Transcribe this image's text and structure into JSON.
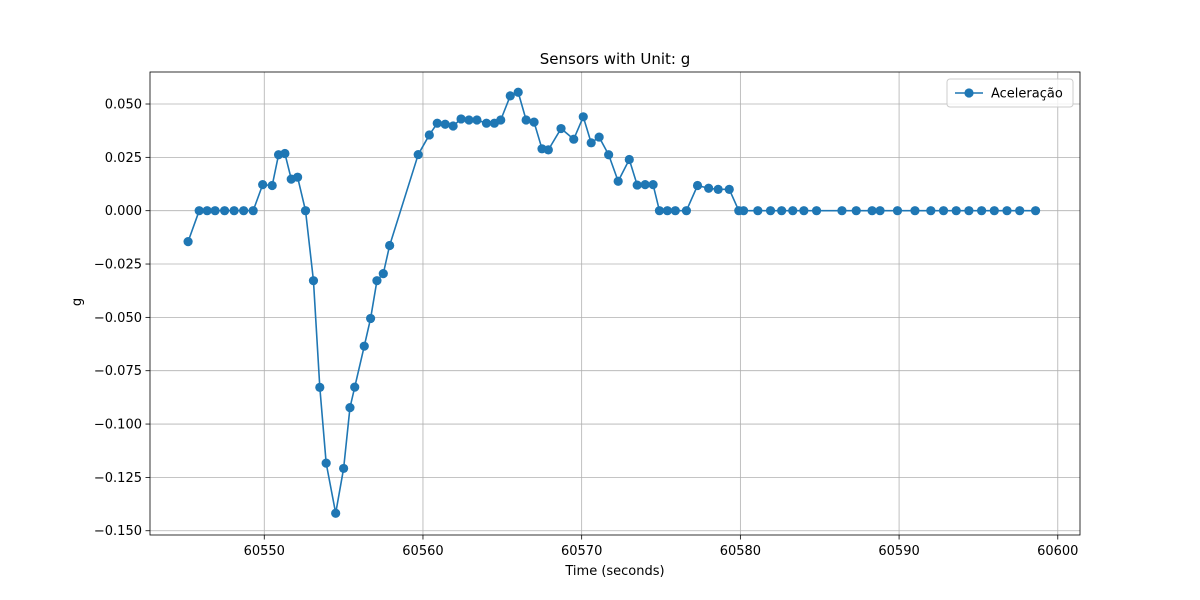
{
  "chart_data": {
    "type": "line",
    "title": "Sensors with Unit: g",
    "xlabel": "Time (seconds)",
    "ylabel": "g",
    "xlim": [
      60542.8,
      60601.4
    ],
    "ylim": [
      -0.152,
      0.065
    ],
    "grid": true,
    "legend_position": "top-right",
    "xticks": [
      60550,
      60560,
      60570,
      60580,
      60590,
      60600
    ],
    "xtick_labels": [
      "60550",
      "60560",
      "60570",
      "60580",
      "60590",
      "60600"
    ],
    "yticks": [
      0.05,
      0.025,
      0.0,
      -0.025,
      -0.05,
      -0.075,
      -0.1,
      -0.125,
      -0.15
    ],
    "ytick_labels": [
      "0.050",
      "0.025",
      "0.000",
      "−0.025",
      "−0.050",
      "−0.075",
      "−0.100",
      "−0.125",
      "−0.150"
    ],
    "series": [
      {
        "name": "Aceleração",
        "color": "#1f77b4",
        "marker": "circle",
        "x": [
          60545.2,
          60545.9,
          60546.4,
          60546.9,
          60547.5,
          60548.1,
          60548.7,
          60549.3,
          60549.9,
          60550.5,
          60550.9,
          60551.3,
          60551.7,
          60552.1,
          60552.6,
          60553.1,
          60553.5,
          60553.9,
          60554.5,
          60555.0,
          60555.4,
          60555.7,
          60556.3,
          60556.7,
          60557.1,
          60557.5,
          60557.9,
          60559.7,
          60560.4,
          60560.9,
          60561.4,
          60561.9,
          60562.4,
          60562.9,
          60563.4,
          60564.0,
          60564.5,
          60564.9,
          60565.5,
          60566.0,
          60566.5,
          60567.0,
          60567.5,
          60567.9,
          60568.7,
          60569.5,
          60570.1,
          60570.6,
          60571.1,
          60571.7,
          60572.3,
          60573.0,
          60573.5,
          60574.0,
          60574.5,
          60574.9,
          60575.4,
          60575.9,
          60576.6,
          60577.3,
          60578.0,
          60578.6,
          60579.3,
          60579.9,
          60580.2,
          60581.1,
          60581.9,
          60582.6,
          60583.3,
          60584.0,
          60584.8,
          60586.4,
          60587.3,
          60588.3,
          60588.8,
          60589.9,
          60591.0,
          60592.0,
          60592.8,
          60593.6,
          60594.4,
          60595.2,
          60596.0,
          60596.8,
          60597.6,
          60598.6
        ],
        "y": [
          -0.0145,
          0.0,
          0.0,
          0.0,
          0.0,
          0.0,
          0.0,
          0.0,
          0.0122,
          0.0118,
          0.0262,
          0.0268,
          0.0148,
          0.0157,
          0.0,
          -0.0328,
          -0.0828,
          -0.1183,
          -0.1418,
          -0.1208,
          -0.0923,
          -0.0827,
          -0.0635,
          -0.0505,
          -0.0328,
          -0.0295,
          -0.0163,
          0.0263,
          0.0355,
          0.041,
          0.0405,
          0.0397,
          0.043,
          0.0425,
          0.0425,
          0.041,
          0.041,
          0.0425,
          0.0538,
          0.0555,
          0.0425,
          0.0415,
          0.029,
          0.0285,
          0.0385,
          0.0335,
          0.044,
          0.0318,
          0.0345,
          0.0262,
          0.0138,
          0.024,
          0.012,
          0.0122,
          0.0122,
          0.0,
          0.0,
          0.0,
          0.0,
          0.0118,
          0.0105,
          0.01,
          0.01,
          0.0,
          0.0,
          0.0,
          0.0,
          0.0,
          0.0,
          0.0,
          0.0,
          0.0,
          0.0,
          0.0,
          0.0,
          0.0,
          0.0,
          0.0,
          0.0,
          0.0,
          0.0,
          0.0,
          0.0,
          0.0,
          0.0,
          0.0
        ]
      }
    ]
  }
}
